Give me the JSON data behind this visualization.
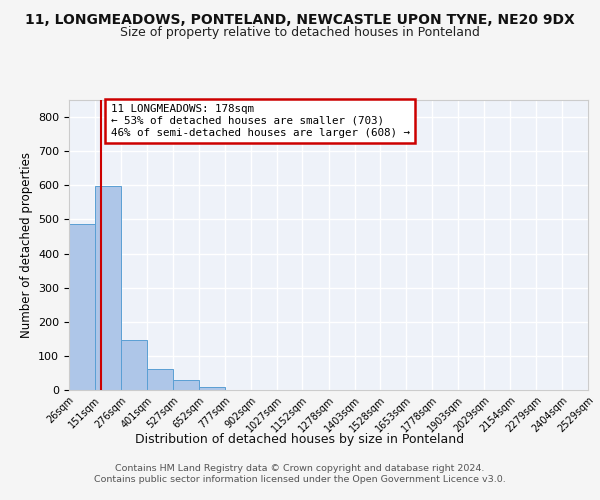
{
  "title": "11, LONGMEADOWS, PONTELAND, NEWCASTLE UPON TYNE, NE20 9DX",
  "subtitle": "Size of property relative to detached houses in Ponteland",
  "xlabel": "Distribution of detached houses by size in Ponteland",
  "ylabel": "Number of detached properties",
  "bin_edges": [
    26,
    151,
    276,
    401,
    527,
    652,
    777,
    902,
    1027,
    1152,
    1278,
    1403,
    1528,
    1653,
    1778,
    1903,
    2029,
    2154,
    2279,
    2404,
    2529
  ],
  "bin_values": [
    487,
    597,
    148,
    63,
    30,
    10,
    0,
    0,
    0,
    0,
    0,
    0,
    0,
    0,
    0,
    0,
    0,
    0,
    0,
    0
  ],
  "bar_color": "#aec6e8",
  "bar_edge_color": "#5a9fd4",
  "property_size": 178,
  "property_line_color": "#cc0000",
  "annotation_text": "11 LONGMEADOWS: 178sqm\n← 53% of detached houses are smaller (703)\n46% of semi-detached houses are larger (608) →",
  "annotation_box_color": "#ffffff",
  "annotation_box_edge_color": "#cc0000",
  "ylim": [
    0,
    850
  ],
  "yticks": [
    0,
    100,
    200,
    300,
    400,
    500,
    600,
    700,
    800
  ],
  "footer_line1": "Contains HM Land Registry data © Crown copyright and database right 2024.",
  "footer_line2": "Contains public sector information licensed under the Open Government Licence v3.0.",
  "background_color": "#eef2f9",
  "grid_color": "#ffffff",
  "title_fontsize": 10,
  "subtitle_fontsize": 9,
  "tick_label_fontsize": 7,
  "ylabel_fontsize": 8.5,
  "xlabel_fontsize": 9
}
